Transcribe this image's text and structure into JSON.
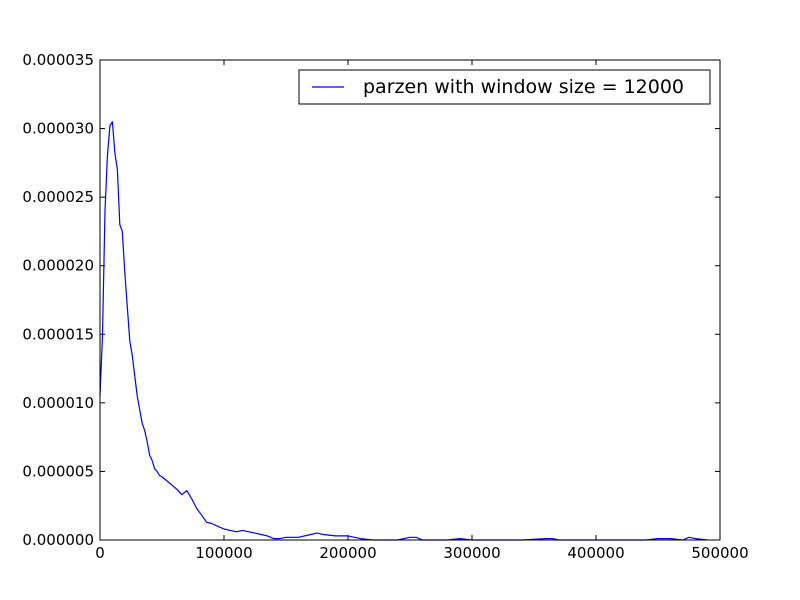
{
  "chart_data": {
    "type": "line",
    "title": "",
    "xlabel": "",
    "ylabel": "",
    "xlim": [
      0,
      500000
    ],
    "ylim": [
      0,
      3.5e-05
    ],
    "xticks": [
      "0",
      "100000",
      "200000",
      "300000",
      "400000",
      "500000"
    ],
    "yticks": [
      "0.000000",
      "0.000005",
      "0.000010",
      "0.000015",
      "0.000020",
      "0.000025",
      "0.000030",
      "0.000035"
    ],
    "grid": false,
    "legend_position": "top-right",
    "series": [
      {
        "name": "parzen with window size = 12000",
        "color": "#0000ff",
        "x": [
          0,
          2000,
          4000,
          6000,
          8000,
          10000,
          12000,
          14000,
          16000,
          18000,
          20000,
          22000,
          24000,
          26000,
          28000,
          30000,
          32000,
          34000,
          36000,
          38000,
          40000,
          42000,
          44000,
          46000,
          48000,
          50000,
          54000,
          58000,
          62000,
          66000,
          70000,
          74000,
          78000,
          82000,
          86000,
          90000,
          95000,
          100000,
          105000,
          110000,
          115000,
          120000,
          125000,
          130000,
          135000,
          140000,
          145000,
          150000,
          160000,
          170000,
          175000,
          180000,
          190000,
          200000,
          210000,
          220000,
          240000,
          250000,
          255000,
          260000,
          280000,
          290000,
          300000,
          340000,
          360000,
          365000,
          370000,
          400000,
          440000,
          450000,
          460000,
          470000,
          475000,
          480000,
          490000
        ],
        "y": [
          1.05e-05,
          1.5e-05,
          2.4e-05,
          2.8e-05,
          3.02e-05,
          3.05e-05,
          2.82e-05,
          2.7e-05,
          2.3e-05,
          2.25e-05,
          1.95e-05,
          1.7e-05,
          1.45e-05,
          1.35e-05,
          1.2e-05,
          1.05e-05,
          9.5e-06,
          8.5e-06,
          8e-06,
          7.2e-06,
          6.2e-06,
          5.8e-06,
          5.2e-06,
          5e-06,
          4.7e-06,
          4.6e-06,
          4.3e-06,
          4e-06,
          3.7e-06,
          3.3e-06,
          3.6e-06,
          3e-06,
          2.3e-06,
          1.8e-06,
          1.3e-06,
          1.2e-06,
          1e-06,
          8e-07,
          7e-07,
          6e-07,
          7e-07,
          6e-07,
          5e-07,
          4e-07,
          3e-07,
          1e-07,
          1e-07,
          2e-07,
          2e-07,
          4e-07,
          5e-07,
          4e-07,
          3e-07,
          3e-07,
          1e-07,
          0.0,
          0.0,
          2e-07,
          2e-07,
          0.0,
          0.0,
          1e-07,
          0.0,
          0.0,
          1e-07,
          1e-07,
          0.0,
          0.0,
          0.0,
          1e-07,
          1e-07,
          0.0,
          2e-07,
          1e-07,
          0.0
        ]
      }
    ]
  }
}
